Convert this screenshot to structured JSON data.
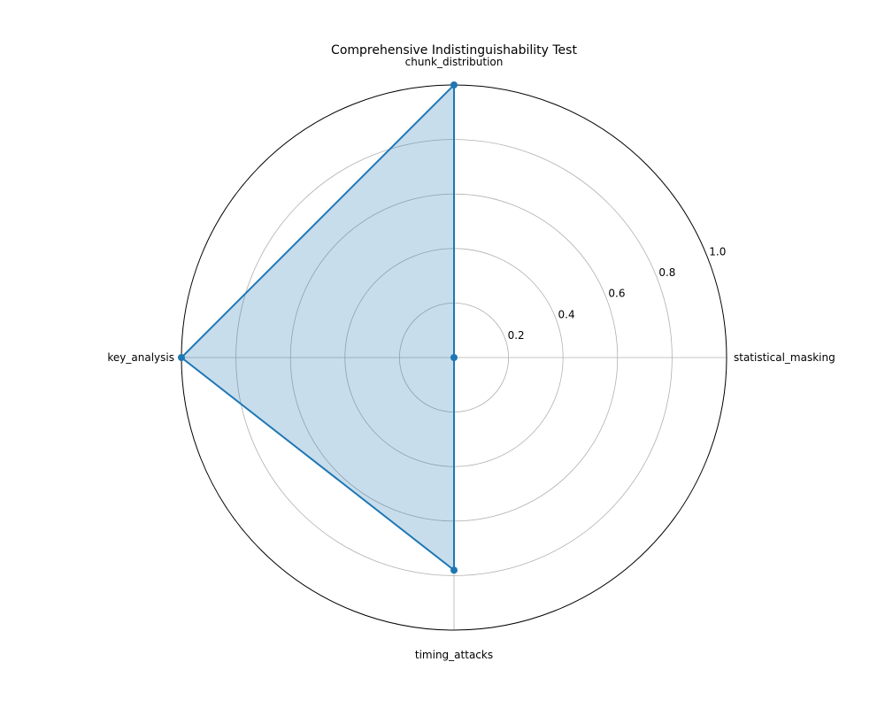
{
  "chart_data": {
    "type": "radar",
    "title": "Comprehensive Indistinguishability Test",
    "categories": [
      "statistical_masking",
      "chunk_distribution",
      "key_analysis",
      "timing_attacks"
    ],
    "series": [
      {
        "values": [
          0.0,
          1.0,
          1.0,
          0.78
        ]
      }
    ],
    "rlim": [
      0,
      1.0
    ],
    "rticks": [
      "0.2",
      "0.4",
      "0.6",
      "0.8",
      "1.0"
    ],
    "grid": true,
    "colors": {
      "series": "#1f77b4",
      "grid": "#b0b0b0",
      "frame": "#000000"
    }
  }
}
